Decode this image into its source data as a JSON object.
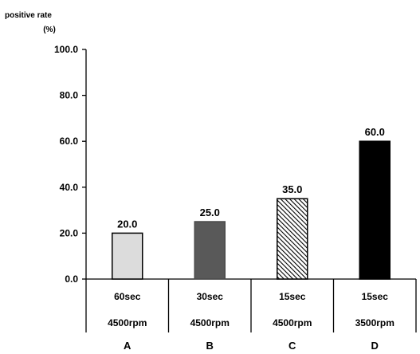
{
  "chart_data": {
    "type": "bar",
    "ylabel_lines": [
      "positive  rate",
      "(%)"
    ],
    "ylim": [
      0,
      100
    ],
    "yticks": [
      0,
      20,
      40,
      60,
      80,
      100
    ],
    "ytick_labels": [
      "0.0",
      "20.0",
      "40.0",
      "60.0",
      "80.0",
      "100.0"
    ],
    "categories": [
      "A",
      "B",
      "C",
      "D"
    ],
    "category_rows": [
      [
        "60sec",
        "30sec",
        "15sec",
        "15sec"
      ],
      [
        "4500rpm",
        "4500rpm",
        "4500rpm",
        "3500rpm"
      ]
    ],
    "values": [
      20,
      25,
      35,
      60
    ],
    "value_labels": [
      "20.0",
      "25.0",
      "35.0",
      "60.0"
    ],
    "bar_fills": [
      "light-gray",
      "dark-gray",
      "diagonal-hatch",
      "black"
    ],
    "colors": {
      "A": "#dcdcdc",
      "B": "#595959",
      "C": "#ffffff",
      "D": "#000000"
    },
    "grid": false,
    "legend": "none"
  }
}
